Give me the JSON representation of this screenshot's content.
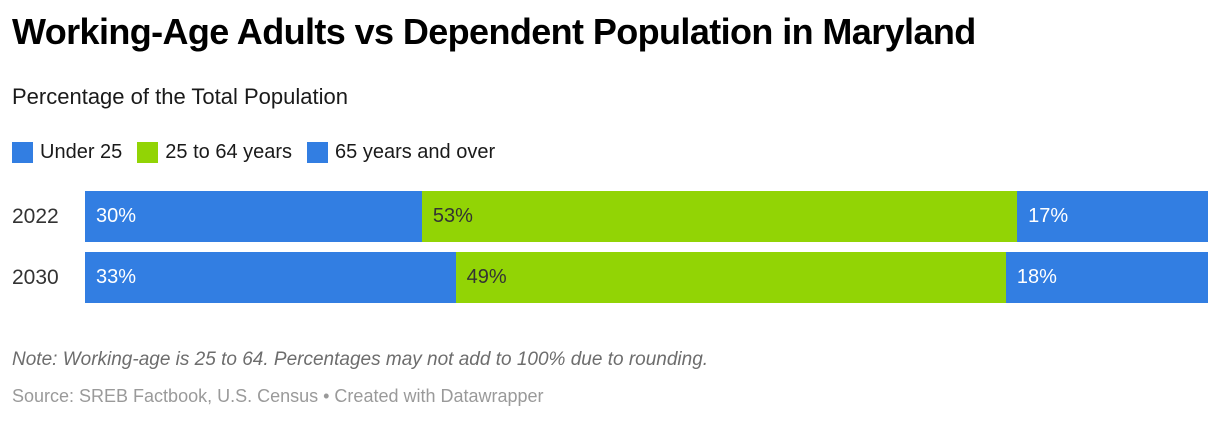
{
  "header": {
    "title": "Working-Age Adults vs Dependent Population in Maryland",
    "subtitle": "Percentage of the Total Population"
  },
  "legend": {
    "items": [
      {
        "label": "Under 25",
        "color": "#327ee2"
      },
      {
        "label": "25 to 64 years",
        "color": "#92d405"
      },
      {
        "label": "65 years and over",
        "color": "#327ee2"
      }
    ]
  },
  "chart_data": {
    "type": "bar",
    "stacked": true,
    "orientation": "horizontal",
    "title": "Working-Age Adults vs Dependent Population in Maryland",
    "subtitle": "Percentage of the Total Population",
    "categories": [
      "2022",
      "2030"
    ],
    "series": [
      {
        "name": "Under 25",
        "color": "#327ee2",
        "label_color": "#ffffff",
        "values": [
          30,
          33
        ]
      },
      {
        "name": "25 to 64 years",
        "color": "#92d405",
        "label_color": "#333333",
        "values": [
          53,
          49
        ]
      },
      {
        "name": "65 years and over",
        "color": "#327ee2",
        "label_color": "#ffffff",
        "values": [
          17,
          18
        ]
      }
    ],
    "value_suffix": "%",
    "xlim": [
      0,
      100
    ],
    "grid": false,
    "legend_position": "top"
  },
  "footer": {
    "note": "Note: Working-age is 25 to 64. Percentages may not add to 100% due to rounding.",
    "source": "Source: SREB Factbook, U.S. Census • Created with Datawrapper"
  }
}
